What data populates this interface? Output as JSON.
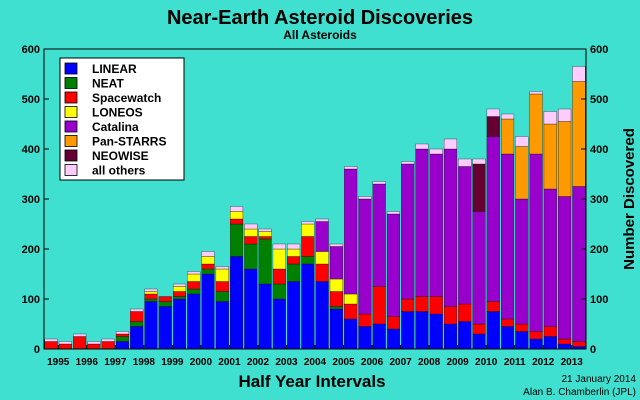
{
  "chart_data": {
    "type": "bar",
    "stacked": true,
    "title": "Near-Earth Asteroid Discoveries",
    "subtitle": "All Asteroids",
    "xlabel": "Half Year Intervals",
    "ylabel": "Number Discovered",
    "ylim": [
      0,
      600
    ],
    "yticks": [
      0,
      100,
      200,
      300,
      400,
      500,
      600
    ],
    "year_labels": [
      "1995",
      "1996",
      "1997",
      "1998",
      "1999",
      "2000",
      "2001",
      "2002",
      "2003",
      "2004",
      "2005",
      "2006",
      "2007",
      "2008",
      "2009",
      "2010",
      "2011",
      "2012",
      "2013"
    ],
    "grid": false,
    "legend_position": "top-left",
    "footer_date": "21 January 2014",
    "footer_author": "Alan B. Chamberlin (JPL)",
    "categories": [
      "1995 H1",
      "1995 H2",
      "1996 H1",
      "1996 H2",
      "1997 H1",
      "1997 H2",
      "1998 H1",
      "1998 H2",
      "1999 H1",
      "1999 H2",
      "2000 H1",
      "2000 H2",
      "2001 H1",
      "2001 H2",
      "2002 H1",
      "2002 H2",
      "2003 H1",
      "2003 H2",
      "2004 H1",
      "2004 H2",
      "2005 H1",
      "2005 H2",
      "2006 H1",
      "2006 H2",
      "2007 H1",
      "2007 H2",
      "2008 H1",
      "2008 H2",
      "2009 H1",
      "2009 H2",
      "2010 H1",
      "2010 H2",
      "2011 H1",
      "2011 H2",
      "2012 H1",
      "2012 H2",
      "2013 H1",
      "2013 H2"
    ],
    "series": [
      {
        "name": "LINEAR",
        "color": "#0000ff",
        "values": [
          0,
          0,
          0,
          0,
          0,
          15,
          45,
          95,
          85,
          100,
          110,
          150,
          95,
          185,
          160,
          130,
          100,
          135,
          170,
          135,
          80,
          60,
          45,
          50,
          40,
          75,
          75,
          70,
          50,
          55,
          30,
          75,
          45,
          35,
          20,
          25,
          10,
          5
        ]
      },
      {
        "name": "NEAT",
        "color": "#008000",
        "values": [
          0,
          0,
          0,
          0,
          0,
          10,
          10,
          5,
          10,
          5,
          10,
          10,
          20,
          65,
          50,
          90,
          30,
          35,
          15,
          0,
          5,
          0,
          0,
          0,
          0,
          0,
          0,
          0,
          0,
          0,
          0,
          0,
          0,
          0,
          0,
          0,
          0,
          0
        ]
      },
      {
        "name": "Spacewatch",
        "color": "#ff0000",
        "values": [
          15,
          10,
          25,
          10,
          15,
          5,
          20,
          10,
          10,
          10,
          15,
          10,
          20,
          10,
          15,
          5,
          30,
          15,
          40,
          35,
          30,
          30,
          25,
          75,
          25,
          25,
          30,
          35,
          35,
          35,
          20,
          20,
          15,
          15,
          15,
          20,
          10,
          10
        ]
      },
      {
        "name": "LONEOS",
        "color": "#ffff00",
        "values": [
          0,
          0,
          0,
          0,
          0,
          0,
          0,
          5,
          0,
          10,
          15,
          15,
          25,
          15,
          15,
          10,
          40,
          15,
          25,
          25,
          25,
          20,
          0,
          0,
          0,
          0,
          0,
          0,
          0,
          0,
          0,
          0,
          0,
          0,
          0,
          0,
          0,
          0
        ]
      },
      {
        "name": "Catalina",
        "color": "#9900cc",
        "values": [
          0,
          0,
          0,
          0,
          0,
          0,
          0,
          0,
          0,
          0,
          0,
          0,
          0,
          0,
          0,
          0,
          0,
          0,
          0,
          60,
          65,
          250,
          230,
          205,
          205,
          270,
          295,
          285,
          315,
          275,
          225,
          330,
          330,
          250,
          355,
          275,
          285,
          310
        ]
      },
      {
        "name": "Pan-STARRS",
        "color": "#ff9900",
        "values": [
          0,
          0,
          0,
          0,
          0,
          0,
          0,
          0,
          0,
          0,
          0,
          0,
          0,
          0,
          0,
          0,
          0,
          0,
          0,
          0,
          0,
          0,
          0,
          0,
          0,
          0,
          0,
          0,
          0,
          0,
          0,
          0,
          70,
          105,
          120,
          130,
          150,
          210
        ]
      },
      {
        "name": "NEOWISE",
        "color": "#660033",
        "values": [
          0,
          0,
          0,
          0,
          0,
          0,
          0,
          0,
          0,
          0,
          0,
          0,
          0,
          0,
          0,
          0,
          0,
          0,
          0,
          0,
          0,
          0,
          0,
          0,
          0,
          0,
          0,
          0,
          0,
          0,
          95,
          40,
          0,
          0,
          0,
          0,
          0,
          0
        ]
      },
      {
        "name": "all others",
        "color": "#ffccff",
        "values": [
          5,
          5,
          5,
          5,
          5,
          5,
          5,
          5,
          0,
          5,
          5,
          10,
          5,
          10,
          10,
          5,
          10,
          10,
          5,
          5,
          5,
          5,
          5,
          5,
          5,
          5,
          10,
          10,
          20,
          15,
          10,
          15,
          10,
          20,
          5,
          25,
          25,
          30
        ]
      }
    ]
  }
}
